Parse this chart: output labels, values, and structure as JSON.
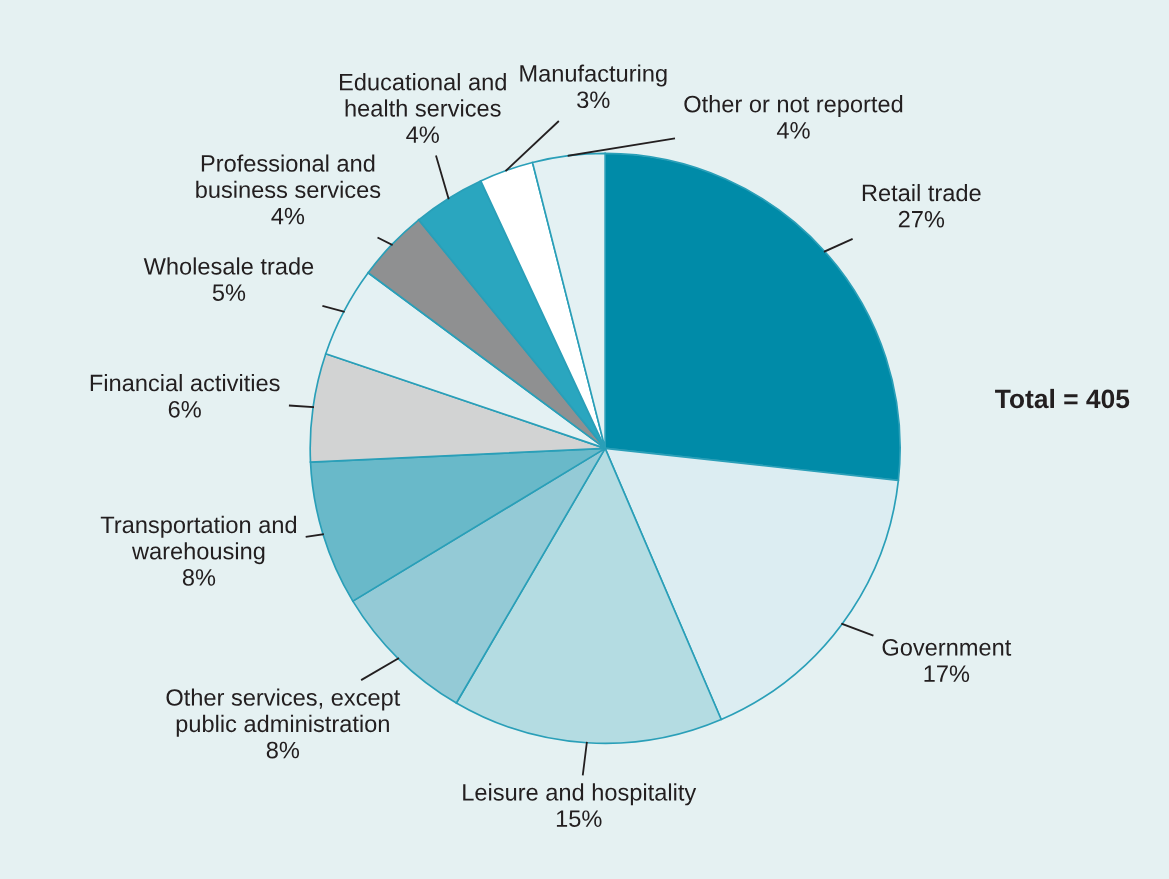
{
  "chart_data": {
    "type": "pie",
    "categories": [
      "Retail trade",
      "Government",
      "Leisure and hospitality",
      "Other services, except\npublic administration",
      "Transportation and\nwarehousing",
      "Financial activities",
      "Wholesale trade",
      "Professional and\nbusiness services",
      "Educational and\nhealth services",
      "Manufacturing",
      "Other or not reported"
    ],
    "values": [
      27,
      17,
      15,
      8,
      8,
      6,
      5,
      4,
      4,
      3,
      4
    ],
    "value_labels": [
      "27%",
      "17%",
      "15%",
      "8%",
      "8%",
      "6%",
      "5%",
      "4%",
      "4%",
      "3%",
      "4%"
    ],
    "colors": [
      "#008ba8",
      "#dcedf2",
      "#b4dce2",
      "#94cad6",
      "#69b9c9",
      "#d2d3d3",
      "#e4f1f3",
      "#8f9091",
      "#2aa6bf",
      "#ffffff",
      "#e4f1f3"
    ],
    "annotations": [
      "Total = 405"
    ],
    "legend": false
  }
}
